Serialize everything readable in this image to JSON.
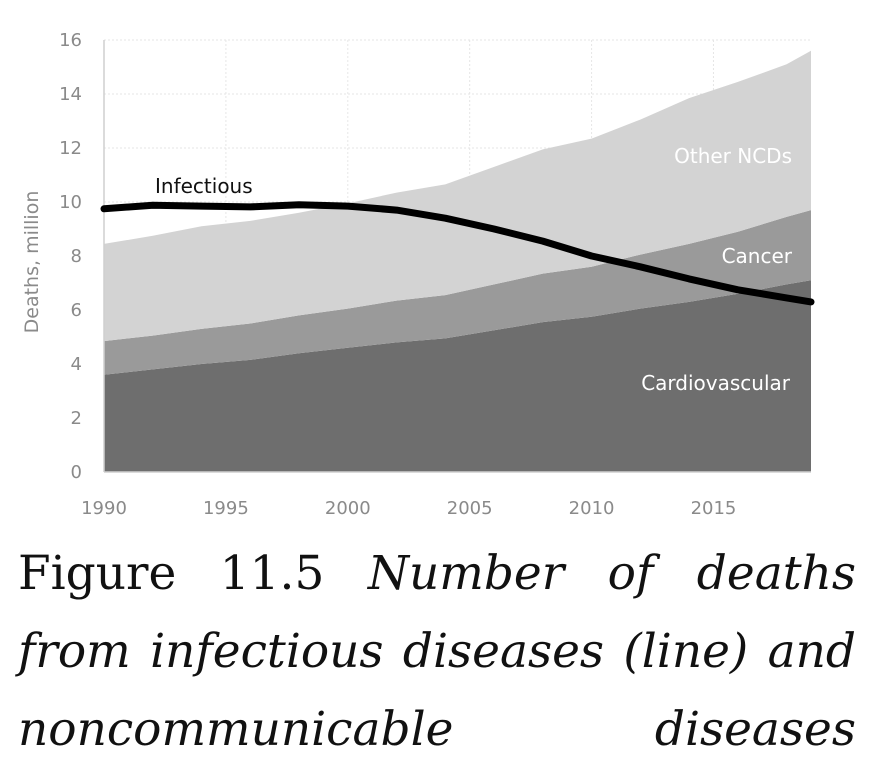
{
  "chart_data": {
    "type": "area",
    "stacked": true,
    "x": [
      1990,
      1992,
      1994,
      1996,
      1998,
      2000,
      2002,
      2004,
      2006,
      2008,
      2010,
      2012,
      2014,
      2016,
      2018,
      2019
    ],
    "xticks": [
      "1990",
      "1995",
      "2000",
      "2005",
      "2010",
      "2015"
    ],
    "xlim": [
      1990,
      2019
    ],
    "ylim": [
      0,
      16
    ],
    "yticks": [
      "0",
      "2",
      "4",
      "6",
      "8",
      "10",
      "12",
      "14",
      "16"
    ],
    "ylabel": "Deaths, million",
    "grid": true,
    "series": [
      {
        "name": "Cardiovascular",
        "kind": "area",
        "color": "#6e6e6e",
        "values": [
          3.6,
          3.8,
          4.0,
          4.15,
          4.4,
          4.6,
          4.8,
          4.95,
          5.25,
          5.55,
          5.75,
          6.05,
          6.3,
          6.6,
          6.95,
          7.1
        ]
      },
      {
        "name": "Cancer",
        "kind": "area",
        "color": "#9a9a9a",
        "values": [
          1.25,
          1.25,
          1.3,
          1.35,
          1.4,
          1.45,
          1.55,
          1.6,
          1.7,
          1.8,
          1.85,
          2.0,
          2.15,
          2.3,
          2.5,
          2.6
        ]
      },
      {
        "name": "Other NCDs",
        "kind": "area",
        "color": "#d3d3d3",
        "values": [
          3.6,
          3.7,
          3.8,
          3.8,
          3.8,
          3.9,
          4.0,
          4.1,
          4.35,
          4.6,
          4.75,
          5.0,
          5.4,
          5.55,
          5.65,
          5.9
        ]
      },
      {
        "name": "Infectious",
        "kind": "line",
        "color": "#000000",
        "values": [
          9.75,
          9.88,
          9.85,
          9.82,
          9.9,
          9.85,
          9.7,
          9.4,
          9.0,
          8.55,
          8.0,
          7.6,
          7.15,
          6.75,
          6.45,
          6.3
        ]
      }
    ]
  },
  "caption": {
    "figure_number": "Figure 11.5",
    "text": "Number of deaths from infectious diseases (line) and noncommunicable diseases"
  }
}
